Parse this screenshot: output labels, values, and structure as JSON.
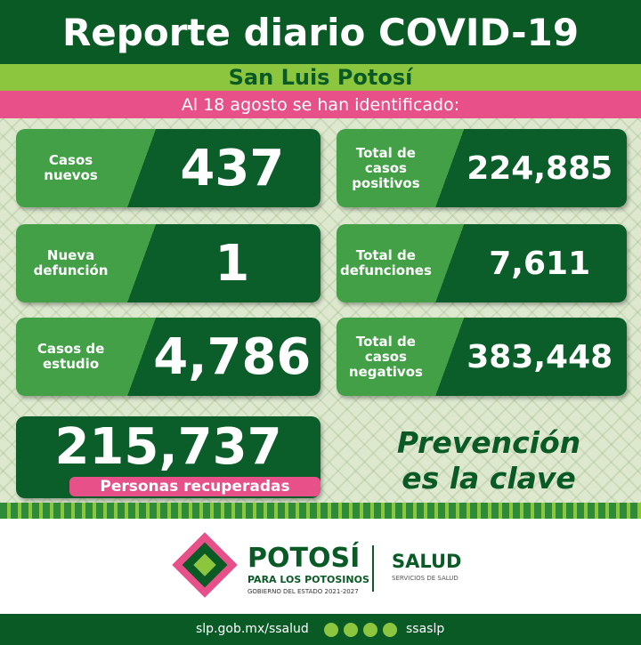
{
  "header": {
    "title": "Reporte diario COVID-19",
    "subtitle": "San Luis Potosí",
    "date_line": "Al 18 agosto se han identificado:"
  },
  "cards": [
    {
      "label": [
        "Casos",
        "nuevos"
      ],
      "value": "437"
    },
    {
      "label": [
        "Total de",
        "casos",
        "positivos"
      ],
      "value": "224,885"
    },
    {
      "label": [
        "Nueva",
        "defunción"
      ],
      "value": "1"
    },
    {
      "label": [
        "Total de",
        "defunciones"
      ],
      "value": "7,611"
    },
    {
      "label": [
        "Casos de",
        "estudio"
      ],
      "value": "4,786"
    },
    {
      "label": [
        "Total de",
        "casos",
        "negativos"
      ],
      "value": "383,448"
    }
  ],
  "recovered": {
    "value": "215,737",
    "label": "Personas recuperadas"
  },
  "slogan": [
    "Prevención",
    "es la clave"
  ],
  "footer": {
    "brand": "POTOSÍ",
    "brand_sub": "PARA LOS POTOSINOS",
    "government": "GOBIERNO DEL ESTADO 2021-2027",
    "dept": "SALUD",
    "dept_sub": "SERVICIOS DE SALUD",
    "url": "slp.gob.mx/ssalud",
    "handle": "ssaslp"
  }
}
